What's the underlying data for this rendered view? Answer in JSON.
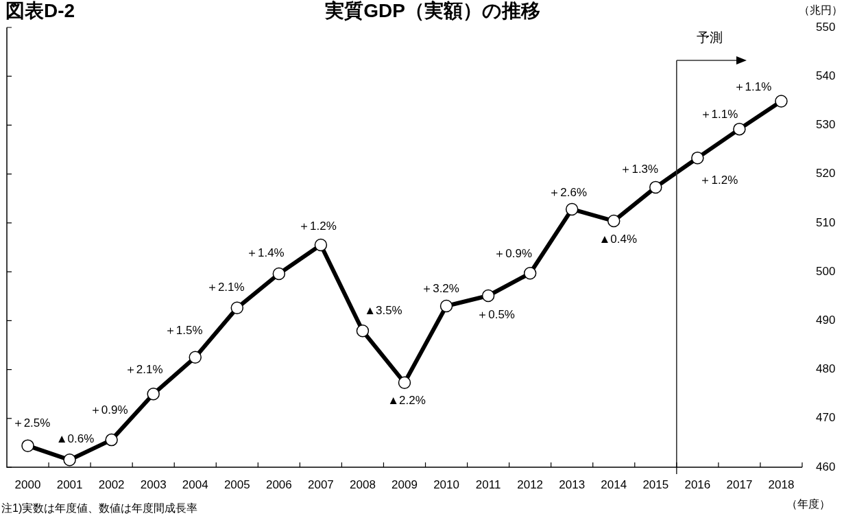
{
  "chart_data": {
    "type": "line",
    "title": "実質GDP（実額）の推移",
    "xlabel": "（年度）",
    "ylabel": "（兆円）",
    "annotations": [
      "図表D-2",
      "注1)実数は年度値、数値は年度間成長率",
      {
        "text": "＋2.5%",
        "x": 2000,
        "y": 464.4
      },
      {
        "text": "▲0.6%",
        "x": 2001,
        "y": 461.5
      },
      {
        "text": "＋0.9%",
        "x": 2002,
        "y": 465.6
      },
      {
        "text": "＋2.1%",
        "x": 2003,
        "y": 475.0
      },
      {
        "text": "＋1.5%",
        "x": 2004,
        "y": 482.5
      },
      {
        "text": "＋2.1%",
        "x": 2005,
        "y": 492.6
      },
      {
        "text": "＋1.4%",
        "x": 2006,
        "y": 499.6
      },
      {
        "text": "＋1.2%",
        "x": 2007,
        "y": 505.5
      },
      {
        "text": "▲3.5%",
        "x": 2008,
        "y": 487.9
      },
      {
        "text": "▲2.2%",
        "x": 2009,
        "y": 477.3
      },
      {
        "text": "＋3.2%",
        "x": 2010,
        "y": 493.0
      },
      {
        "text": "＋0.5%",
        "x": 2011,
        "y": 495.1
      },
      {
        "text": "＋0.9%",
        "x": 2012,
        "y": 499.7
      },
      {
        "text": "＋2.6%",
        "x": 2013,
        "y": 512.8
      },
      {
        "text": "▲0.4%",
        "x": 2014,
        "y": 510.4
      },
      {
        "text": "＋1.3%",
        "x": 2015,
        "y": 517.3
      },
      {
        "text": "＋1.2%",
        "x": 2016,
        "y": 523.3
      },
      {
        "text": "＋1.1%",
        "x": 2017,
        "y": 529.2
      },
      {
        "text": "＋1.1%",
        "x": 2018,
        "y": 534.9
      }
    ],
    "x": [
      2000,
      2001,
      2002,
      2003,
      2004,
      2005,
      2006,
      2007,
      2008,
      2009,
      2010,
      2011,
      2012,
      2013,
      2014,
      2015,
      2016,
      2017,
      2018
    ],
    "xlim": [
      1999.5,
      2018.5
    ],
    "xticks": [
      2000,
      {
        "value": 2000.5,
        "label": null
      },
      2001,
      {
        "value": 2001.5,
        "label": null
      },
      2002,
      {
        "value": 2002.5,
        "label": null
      },
      2003,
      {
        "value": 2003.5,
        "label": null
      },
      2004,
      {
        "value": 2004.5,
        "label": null
      },
      2005,
      {
        "value": 2005.5,
        "label": null
      },
      2006,
      {
        "value": 2006.5,
        "label": null
      },
      2007,
      {
        "value": 2007.5,
        "label": null
      },
      2008,
      {
        "value": 2008.5,
        "label": null
      },
      2009,
      {
        "value": 2009.5,
        "label": null
      },
      2010,
      {
        "value": 2010.5,
        "label": null
      },
      2011,
      {
        "value": 2011.5,
        "label": null
      },
      2012,
      {
        "value": 2012.5,
        "label": null
      },
      2013,
      {
        "value": 2013.5,
        "label": null
      },
      2014,
      {
        "value": 2014.5,
        "label": null
      },
      2015,
      {
        "value": 2015.5,
        "label": null
      },
      2016,
      {
        "value": 2016.5,
        "label": null
      },
      2017,
      {
        "value": 2017.5,
        "label": null
      },
      2018,
      {
        "value": 2018.5,
        "label": null
      }
    ],
    "ylim": [
      460,
      550
    ],
    "yticks": [
      460,
      470,
      480,
      490,
      500,
      510,
      520,
      530,
      540,
      550
    ],
    "series": [
      {
        "color": "#000000",
        "values": [
          464.4,
          461.5,
          465.6,
          475.0,
          482.5,
          492.6,
          499.6,
          505.5,
          487.9,
          477.3,
          493.0,
          495.1,
          499.7,
          512.8,
          510.4,
          517.3,
          523.3,
          529.2,
          534.9
        ]
      }
    ],
    "ref_lines": [
      {
        "axis": "x",
        "value": 2015.5,
        "label": "予測",
        "color": "#333333"
      }
    ],
    "marker": "circle",
    "line_style": "solid"
  }
}
